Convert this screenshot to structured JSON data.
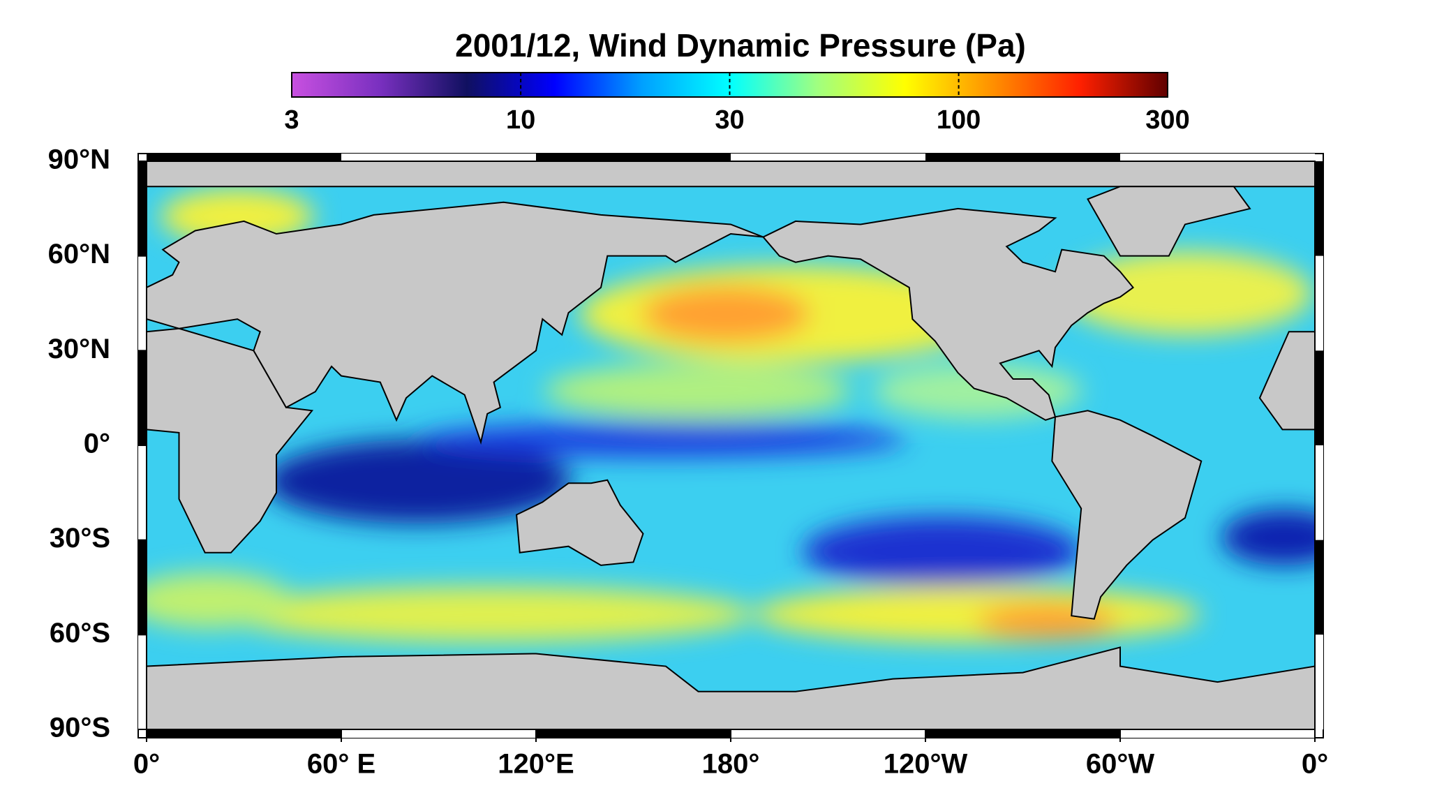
{
  "title": "2001/12, Wind Dynamic Pressure (Pa)",
  "colorbar": {
    "scale": "log",
    "lim": [
      3,
      300
    ],
    "ticks": [
      3,
      10,
      30,
      100,
      300
    ],
    "colors": [
      "#c850e0",
      "#7a30c0",
      "#101060",
      "#0000ff",
      "#00a0ff",
      "#00ffff",
      "#a0ff80",
      "#ffff00",
      "#ff9000",
      "#ff2000",
      "#600000"
    ]
  },
  "map": {
    "xlim": [
      0,
      360
    ],
    "ylim": [
      -90,
      90
    ],
    "lat_ticks": [
      {
        "value": 90,
        "label": "90°N"
      },
      {
        "value": 60,
        "label": "60°N"
      },
      {
        "value": 30,
        "label": "30°N"
      },
      {
        "value": 0,
        "label": "0°"
      },
      {
        "value": -30,
        "label": "30°S"
      },
      {
        "value": -60,
        "label": "60°S"
      },
      {
        "value": -90,
        "label": "90°S"
      }
    ],
    "lon_ticks": [
      {
        "value": 0,
        "label": "0°"
      },
      {
        "value": 60,
        "label": "60° E"
      },
      {
        "value": 120,
        "label": "120°E"
      },
      {
        "value": 180,
        "label": "180°"
      },
      {
        "value": 240,
        "label": "120°W"
      },
      {
        "value": 300,
        "label": "60°W"
      },
      {
        "value": 360,
        "label": "0°"
      }
    ]
  }
}
